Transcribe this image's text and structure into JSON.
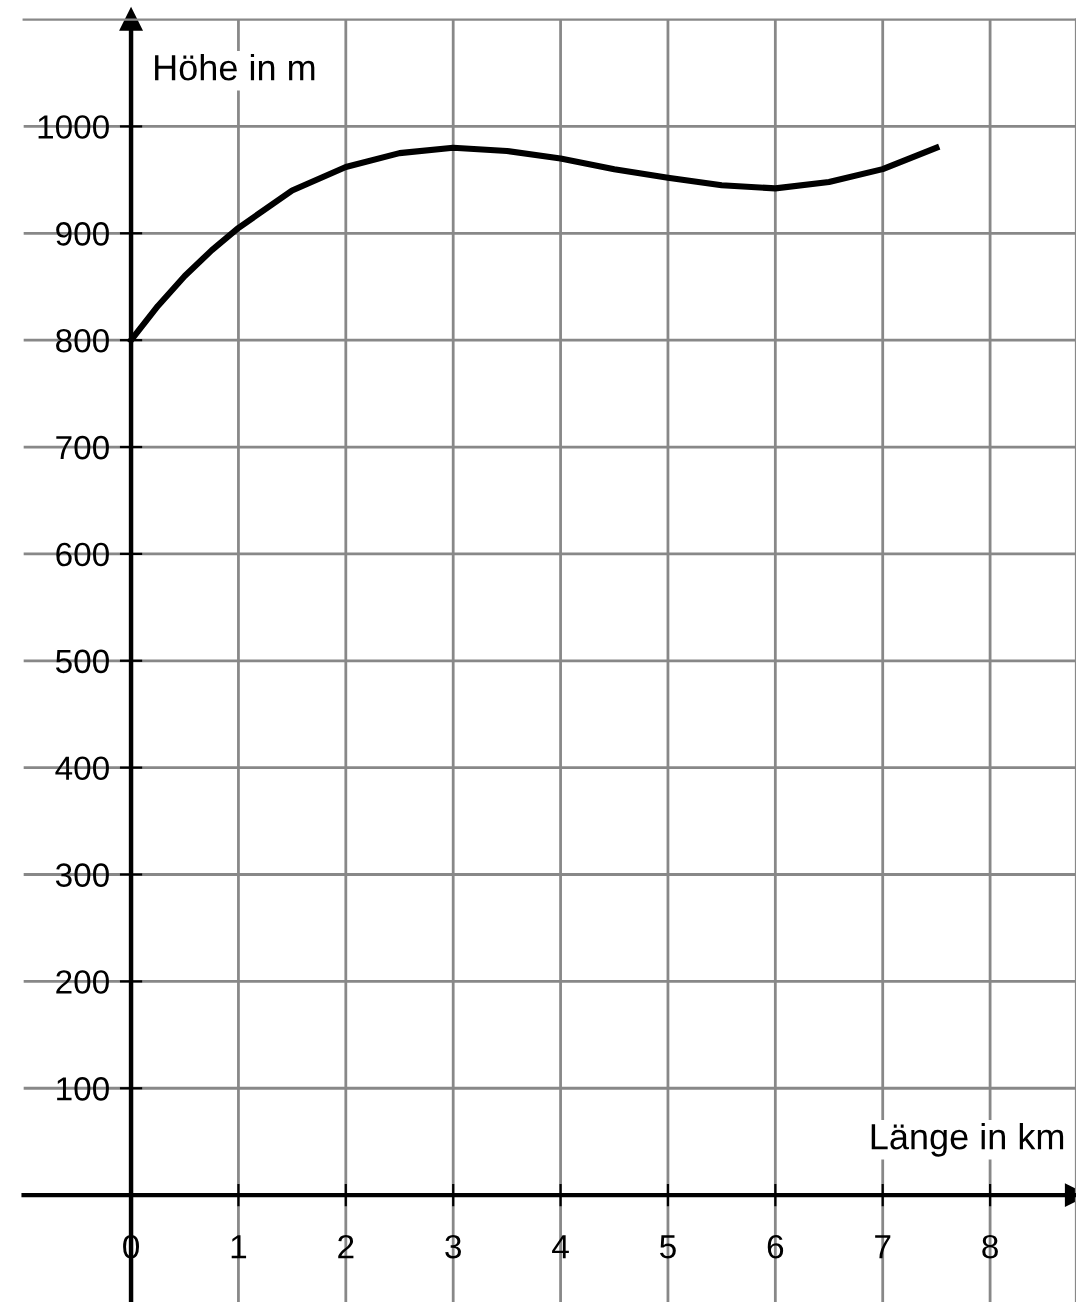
{
  "chart_data": {
    "type": "line",
    "xlabel": "Länge in km",
    "ylabel": "Höhe in m",
    "xlim": [
      -1,
      8.8
    ],
    "ylim": [
      -100,
      1100
    ],
    "xticks": [
      0,
      1,
      2,
      3,
      4,
      5,
      6,
      7,
      8
    ],
    "yticks": [
      100,
      200,
      300,
      400,
      500,
      600,
      700,
      800,
      900,
      1000
    ],
    "grid": true,
    "marker": "none",
    "line_style": "solid",
    "series": [
      {
        "color": "#000000",
        "x": [
          0,
          0.25,
          0.5,
          0.75,
          1,
          1.5,
          2,
          2.5,
          3,
          3.5,
          4,
          4.5,
          5,
          5.5,
          6,
          6.5,
          7,
          7.5
        ],
        "values": [
          800,
          832,
          860,
          884,
          905,
          940,
          962,
          975,
          980,
          977,
          970,
          960,
          952,
          945,
          942,
          948,
          960,
          980
        ]
      }
    ]
  }
}
